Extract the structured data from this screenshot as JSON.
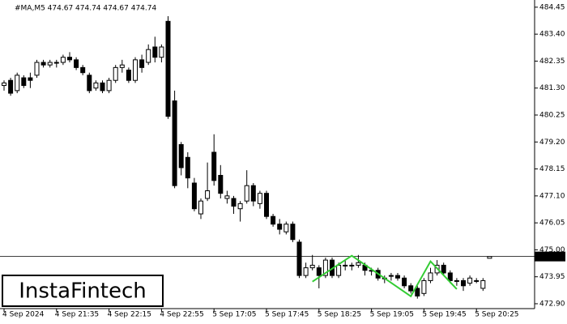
{
  "chart_data": {
    "type": "candlestick",
    "title": "#MA,M5 474.67 474.74 474.67 474.74",
    "logo": "InstaFintech",
    "categories": [
      "4 Sep 2024",
      null,
      null,
      null,
      null,
      null,
      null,
      null,
      "4 Sep 21:35",
      null,
      null,
      null,
      null,
      null,
      null,
      null,
      "4 Sep 22:15",
      null,
      null,
      null,
      null,
      null,
      null,
      null,
      "4 Sep 22:55",
      null,
      null,
      null,
      null,
      null,
      null,
      null,
      "5 Sep 17:05",
      null,
      null,
      null,
      null,
      null,
      null,
      null,
      "5 Sep 17:45",
      null,
      null,
      null,
      null,
      null,
      null,
      null,
      "5 Sep 18:25",
      null,
      null,
      null,
      null,
      null,
      null,
      null,
      "5 Sep 19:05",
      null,
      null,
      null,
      null,
      null,
      null,
      null,
      "5 Sep 19:45",
      null,
      null,
      null,
      null,
      null,
      null,
      null,
      "5 Sep 20:25",
      null,
      null
    ],
    "open": [
      481.4,
      481.6,
      481.2,
      481.7,
      481.7,
      481.8,
      482.3,
      482.2,
      482.3,
      482.3,
      482.5,
      482.4,
      482.1,
      481.8,
      481.3,
      481.5,
      481.2,
      481.6,
      482.1,
      482.0,
      481.6,
      482.4,
      482.3,
      482.9,
      482.5,
      483.9,
      480.8,
      479.1,
      478.6,
      477.6,
      476.4,
      477.0,
      478.8,
      477.9,
      477.0,
      477.0,
      476.6,
      476.9,
      477.5,
      476.8,
      477.2,
      476.3,
      476.0,
      475.7,
      476.0,
      475.3,
      474.0,
      474.3,
      474.3,
      474.0,
      474.6,
      474.0,
      474.4,
      474.4,
      474.4,
      474.4,
      474.2,
      474.2,
      473.9,
      474.0,
      474.0,
      473.9,
      473.6,
      473.5,
      473.3,
      473.8,
      474.1,
      474.4,
      474.1,
      473.8,
      473.8,
      473.7,
      473.8,
      473.5,
      474.67
    ],
    "high": [
      481.6,
      481.7,
      481.9,
      481.8,
      481.9,
      482.4,
      482.4,
      482.4,
      482.4,
      482.6,
      482.7,
      482.5,
      482.2,
      481.9,
      481.6,
      481.6,
      481.7,
      482.2,
      482.4,
      482.1,
      482.5,
      482.6,
      483.0,
      483.3,
      483.0,
      484.1,
      481.2,
      479.2,
      478.8,
      477.8,
      477.0,
      478.4,
      479.5,
      478.3,
      477.3,
      477.1,
      476.9,
      478.1,
      477.6,
      477.3,
      477.3,
      476.4,
      476.2,
      476.1,
      476.1,
      475.4,
      474.5,
      474.8,
      474.4,
      474.7,
      474.7,
      474.5,
      474.6,
      474.5,
      474.8,
      474.5,
      474.3,
      474.3,
      474.0,
      474.1,
      474.1,
      474.0,
      473.7,
      473.6,
      473.9,
      474.3,
      474.6,
      474.5,
      474.2,
      473.9,
      473.9,
      474.0,
      473.9,
      473.9,
      474.74
    ],
    "low": [
      481.2,
      481.0,
      481.1,
      481.3,
      481.3,
      481.7,
      482.1,
      482.1,
      482.1,
      482.2,
      482.3,
      482.0,
      481.8,
      481.1,
      481.2,
      481.1,
      481.1,
      481.5,
      481.9,
      481.5,
      481.5,
      481.9,
      482.2,
      482.3,
      482.3,
      480.1,
      477.4,
      477.9,
      477.4,
      476.5,
      476.2,
      476.9,
      477.5,
      477.0,
      476.8,
      476.4,
      476.1,
      476.8,
      476.7,
      476.6,
      476.2,
      475.9,
      475.6,
      475.6,
      475.3,
      473.9,
      473.9,
      474.2,
      473.5,
      473.9,
      473.9,
      473.9,
      474.2,
      474.2,
      474.3,
      474.0,
      474.0,
      473.8,
      473.7,
      473.8,
      473.8,
      473.5,
      473.3,
      473.1,
      473.2,
      473.7,
      474.0,
      474.0,
      473.7,
      473.6,
      473.4,
      473.6,
      473.7,
      473.4,
      474.67
    ],
    "close": [
      481.5,
      481.1,
      481.8,
      481.4,
      481.6,
      482.3,
      482.2,
      482.3,
      482.3,
      482.5,
      482.4,
      482.1,
      481.9,
      481.2,
      481.5,
      481.2,
      481.6,
      482.1,
      482.2,
      481.6,
      482.4,
      482.1,
      482.8,
      482.5,
      482.9,
      480.2,
      477.5,
      478.2,
      477.8,
      476.6,
      476.9,
      477.3,
      477.7,
      477.2,
      477.1,
      476.7,
      476.8,
      477.5,
      476.9,
      477.2,
      476.3,
      476.0,
      475.8,
      476.0,
      475.4,
      474.0,
      474.3,
      474.4,
      474.0,
      474.6,
      474.0,
      474.4,
      474.4,
      474.4,
      474.5,
      474.2,
      474.2,
      473.9,
      473.9,
      474.0,
      473.9,
      473.6,
      473.4,
      473.2,
      473.8,
      474.1,
      474.4,
      474.1,
      473.8,
      473.8,
      473.6,
      473.9,
      473.8,
      473.8,
      474.74
    ],
    "up_color": "#ffffff",
    "down_color": "#000000",
    "last_price": 474.74,
    "pattern": {
      "color": "#33cc33",
      "x": [
        47,
        53,
        62,
        65,
        69
      ],
      "y": [
        473.76,
        474.77,
        473.19,
        474.55,
        473.47
      ]
    },
    "ylim": [
      472.71,
      484.73
    ],
    "yticks": [
      {
        "value": 472.9,
        "label": "472.90"
      },
      473.95,
      {
        "value": 475,
        "label": "475.00"
      },
      476.05,
      {
        "value": 477.1,
        "label": "477.10"
      },
      478.15,
      {
        "value": 479.2,
        "label": "479.20"
      },
      480.25,
      {
        "value": 481.3,
        "label": "481.30"
      },
      482.35,
      {
        "value": 483.4,
        "label": "483.40"
      },
      484.45
    ]
  }
}
